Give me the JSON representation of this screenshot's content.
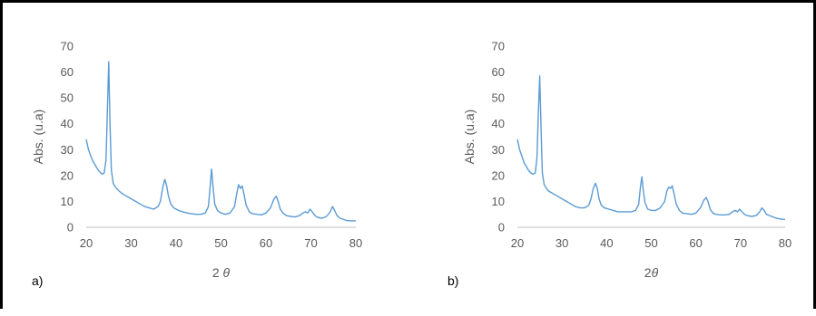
{
  "figure": {
    "panels": [
      {
        "label": "a)",
        "xlabel_main": "2 ",
        "xlabel_symbol": "θ",
        "ylabel": "Abs. (u.a)"
      },
      {
        "label": "b)",
        "xlabel_main": "2",
        "xlabel_symbol": "θ",
        "ylabel": "Abs. (u.a)"
      }
    ]
  },
  "colors": {
    "line": "#5b9bd5",
    "axis": "#bfbfbf",
    "text": "#595959"
  },
  "chart_data": [
    {
      "type": "line",
      "xlabel": "2 θ",
      "ylabel": "Abs. (u.a)",
      "xlim": [
        20,
        80
      ],
      "ylim": [
        0,
        70
      ],
      "xticks": [
        20,
        30,
        40,
        50,
        60,
        70,
        80
      ],
      "yticks": [
        0,
        10,
        20,
        30,
        40,
        50,
        60,
        70
      ],
      "grid": false,
      "series": [
        {
          "x": [
            20,
            20.5,
            21,
            21.5,
            22,
            22.5,
            23,
            23.5,
            24,
            24.4,
            24.7,
            25.0,
            25.3,
            25.6,
            26.0,
            26.5,
            27,
            28,
            29,
            30,
            31,
            32,
            33,
            34,
            35,
            36,
            36.5,
            37.0,
            37.5,
            37.9,
            38.3,
            38.8,
            39.5,
            40.5,
            41.5,
            42.5,
            43.5,
            44.5,
            45.5,
            46.5,
            47.2,
            47.6,
            47.9,
            48.2,
            48.6,
            49.2,
            50,
            51,
            52,
            53,
            53.5,
            53.9,
            54.3,
            54.7,
            55.1,
            55.6,
            56.3,
            57,
            58,
            59,
            60,
            61,
            61.8,
            62.3,
            62.7,
            63.2,
            63.8,
            64.5,
            65.5,
            66.5,
            67.5,
            68.2,
            68.8,
            69.3,
            69.8,
            70.3,
            70.9,
            71.5,
            72.5,
            73.5,
            74.3,
            74.8,
            75.3,
            75.8,
            76.5,
            77.3,
            78,
            79,
            80
          ],
          "y": [
            34,
            30,
            27.5,
            25.5,
            24,
            22.5,
            21.5,
            20.5,
            21,
            26,
            45,
            64,
            40,
            22,
            17,
            15.5,
            14.5,
            13,
            12,
            11,
            10,
            9,
            8,
            7.5,
            7,
            8,
            10,
            15,
            18.5,
            16,
            12,
            9,
            7.5,
            6.5,
            6,
            5.5,
            5.2,
            5.0,
            5.0,
            5.5,
            8,
            16,
            22.5,
            16,
            9,
            6.5,
            5.5,
            5.0,
            5.5,
            8,
            13,
            16.5,
            15,
            16,
            13,
            8.5,
            6,
            5.2,
            5.0,
            4.8,
            5.5,
            7.5,
            11,
            12,
            10,
            7,
            5.5,
            4.5,
            4.2,
            4.0,
            4.5,
            5.5,
            6,
            5.5,
            7,
            6,
            4.5,
            3.8,
            3.5,
            4.2,
            6,
            8,
            6.5,
            4.5,
            3.5,
            3.0,
            2.6,
            2.5,
            2.5
          ]
        }
      ]
    },
    {
      "type": "line",
      "xlabel": "2θ",
      "ylabel": "Abs. (u.a)",
      "xlim": [
        20,
        80
      ],
      "ylim": [
        0,
        70
      ],
      "xticks": [
        20,
        30,
        40,
        50,
        60,
        70,
        80
      ],
      "yticks": [
        0,
        10,
        20,
        30,
        40,
        50,
        60,
        70
      ],
      "grid": false,
      "series": [
        {
          "x": [
            20,
            20.5,
            21,
            21.5,
            22,
            22.5,
            23,
            23.5,
            24,
            24.4,
            24.7,
            25.0,
            25.3,
            25.6,
            26.0,
            26.5,
            27,
            28,
            29,
            30,
            31,
            32,
            33,
            34,
            35,
            36,
            36.5,
            37.0,
            37.5,
            37.9,
            38.3,
            38.8,
            39.5,
            40.5,
            41.5,
            42.5,
            43.5,
            44.5,
            45.5,
            46.5,
            47.2,
            47.6,
            47.9,
            48.2,
            48.6,
            49.2,
            50,
            51,
            52,
            53,
            53.5,
            53.9,
            54.3,
            54.7,
            55.1,
            55.6,
            56.3,
            57,
            58,
            59,
            60,
            61,
            61.8,
            62.3,
            62.7,
            63.2,
            63.8,
            64.5,
            65.5,
            66.5,
            67.5,
            68.2,
            68.8,
            69.3,
            69.8,
            70.3,
            70.9,
            71.5,
            72.5,
            73.5,
            74.3,
            74.8,
            75.3,
            75.8,
            76.5,
            77.3,
            78,
            79,
            80
          ],
          "y": [
            34,
            30,
            27.5,
            25,
            23.5,
            22,
            21,
            20.5,
            21,
            27,
            44,
            58.5,
            38,
            21,
            16.5,
            15,
            14,
            13,
            12,
            11,
            10,
            9,
            8,
            7.5,
            7.5,
            8.5,
            11,
            15,
            17,
            15,
            11,
            8.5,
            7.5,
            7,
            6.5,
            6,
            6,
            6,
            6,
            6.5,
            9,
            16,
            19.5,
            14.5,
            9.5,
            7,
            6.5,
            6.5,
            7.5,
            10,
            14,
            15.5,
            15,
            16,
            13,
            9,
            6.5,
            5.5,
            5.2,
            5.0,
            5.5,
            7.5,
            10.5,
            11.5,
            10,
            7,
            5.5,
            5,
            4.8,
            4.8,
            5,
            6,
            6.5,
            6,
            7,
            6,
            5,
            4.5,
            4.2,
            4.5,
            6,
            7.5,
            6.5,
            5,
            4.5,
            4,
            3.5,
            3.2,
            3
          ]
        }
      ]
    }
  ]
}
